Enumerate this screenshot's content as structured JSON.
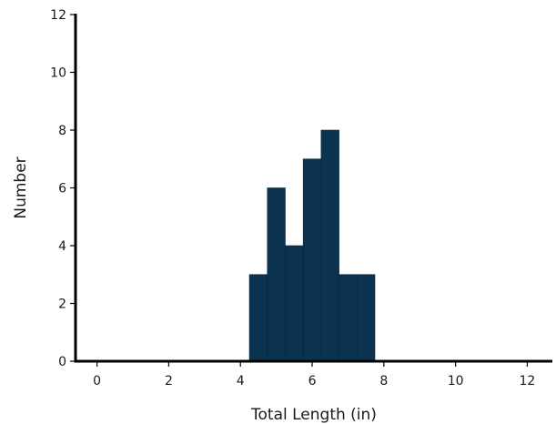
{
  "chart_data": {
    "type": "bar",
    "title": "",
    "xlabel": "Total Length (in)",
    "ylabel": "Number",
    "xlim": [
      -0.6,
      12.7
    ],
    "ylim": [
      0,
      12
    ],
    "xticks": [
      0,
      2,
      4,
      6,
      8,
      10,
      12
    ],
    "yticks": [
      0,
      2,
      4,
      6,
      8,
      10,
      12
    ],
    "grid": false,
    "bar_color": "#0b3350",
    "bins": [
      {
        "x0": 4.25,
        "x1": 4.75,
        "value": 3
      },
      {
        "x0": 4.75,
        "x1": 5.25,
        "value": 6
      },
      {
        "x0": 5.25,
        "x1": 5.75,
        "value": 4
      },
      {
        "x0": 5.75,
        "x1": 6.25,
        "value": 7
      },
      {
        "x0": 6.25,
        "x1": 6.75,
        "value": 8
      },
      {
        "x0": 6.75,
        "x1": 7.25,
        "value": 3
      },
      {
        "x0": 7.25,
        "x1": 7.75,
        "value": 3
      }
    ]
  }
}
